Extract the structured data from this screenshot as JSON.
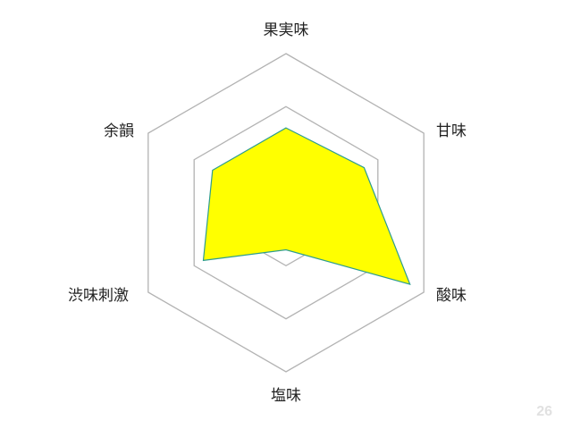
{
  "slide": {
    "page_number": "26"
  },
  "chart_data": {
    "type": "radar",
    "axes": [
      "果実味",
      "甘味",
      "酸味",
      "塩味",
      "渋味刺激",
      "余韻"
    ],
    "rings": 3,
    "r_max": 3,
    "series": [
      {
        "values": [
          1.6,
          1.7,
          2.7,
          0.7,
          1.8,
          1.6
        ],
        "fill": "#ffff00",
        "stroke": "#2e9d8f"
      }
    ],
    "grid_color": "#b3b3b3",
    "legend": "none",
    "title": ""
  }
}
